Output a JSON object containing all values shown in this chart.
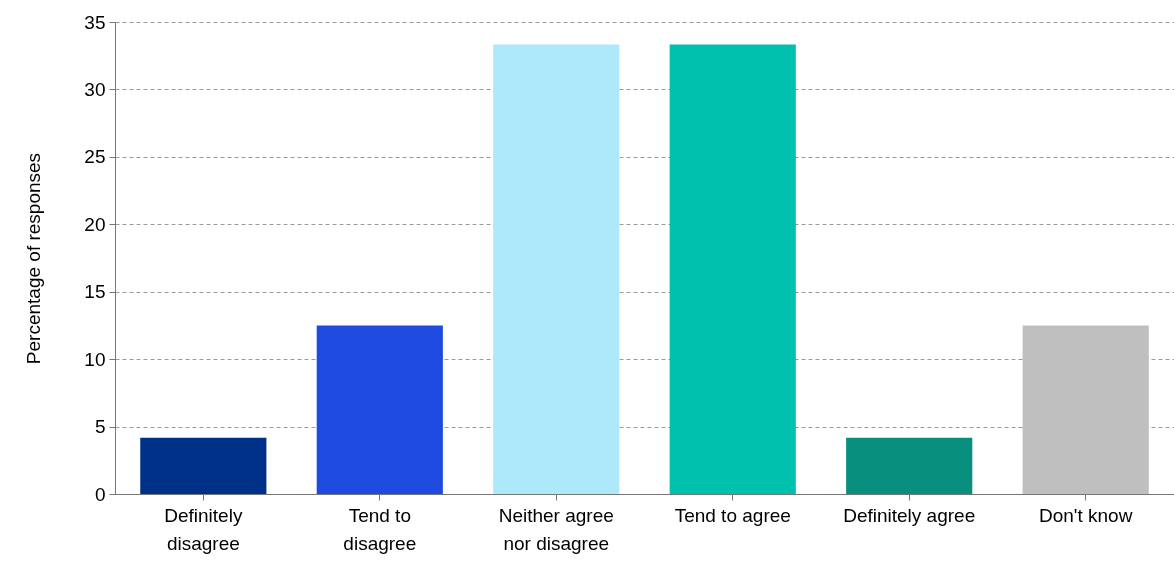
{
  "chart_data": {
    "type": "bar",
    "ylabel": "Percentage of responses",
    "categories": [
      "Definitely\ndisagree",
      "Tend to\ndisagree",
      "Neither agree\nnor disagree",
      "Tend to agree",
      "Definitely agree",
      "Don't know"
    ],
    "values": [
      4.17,
      12.5,
      33.33,
      33.33,
      4.17,
      12.5
    ],
    "colors": [
      "#003189",
      "#1f4ae0",
      "#aee8fb",
      "#00c0ae",
      "#088f7e",
      "#bfbfbf"
    ],
    "ylim": [
      0,
      35
    ],
    "yticks": [
      0,
      5,
      10,
      15,
      20,
      25,
      30,
      35
    ],
    "grid": "y",
    "legend": false
  }
}
